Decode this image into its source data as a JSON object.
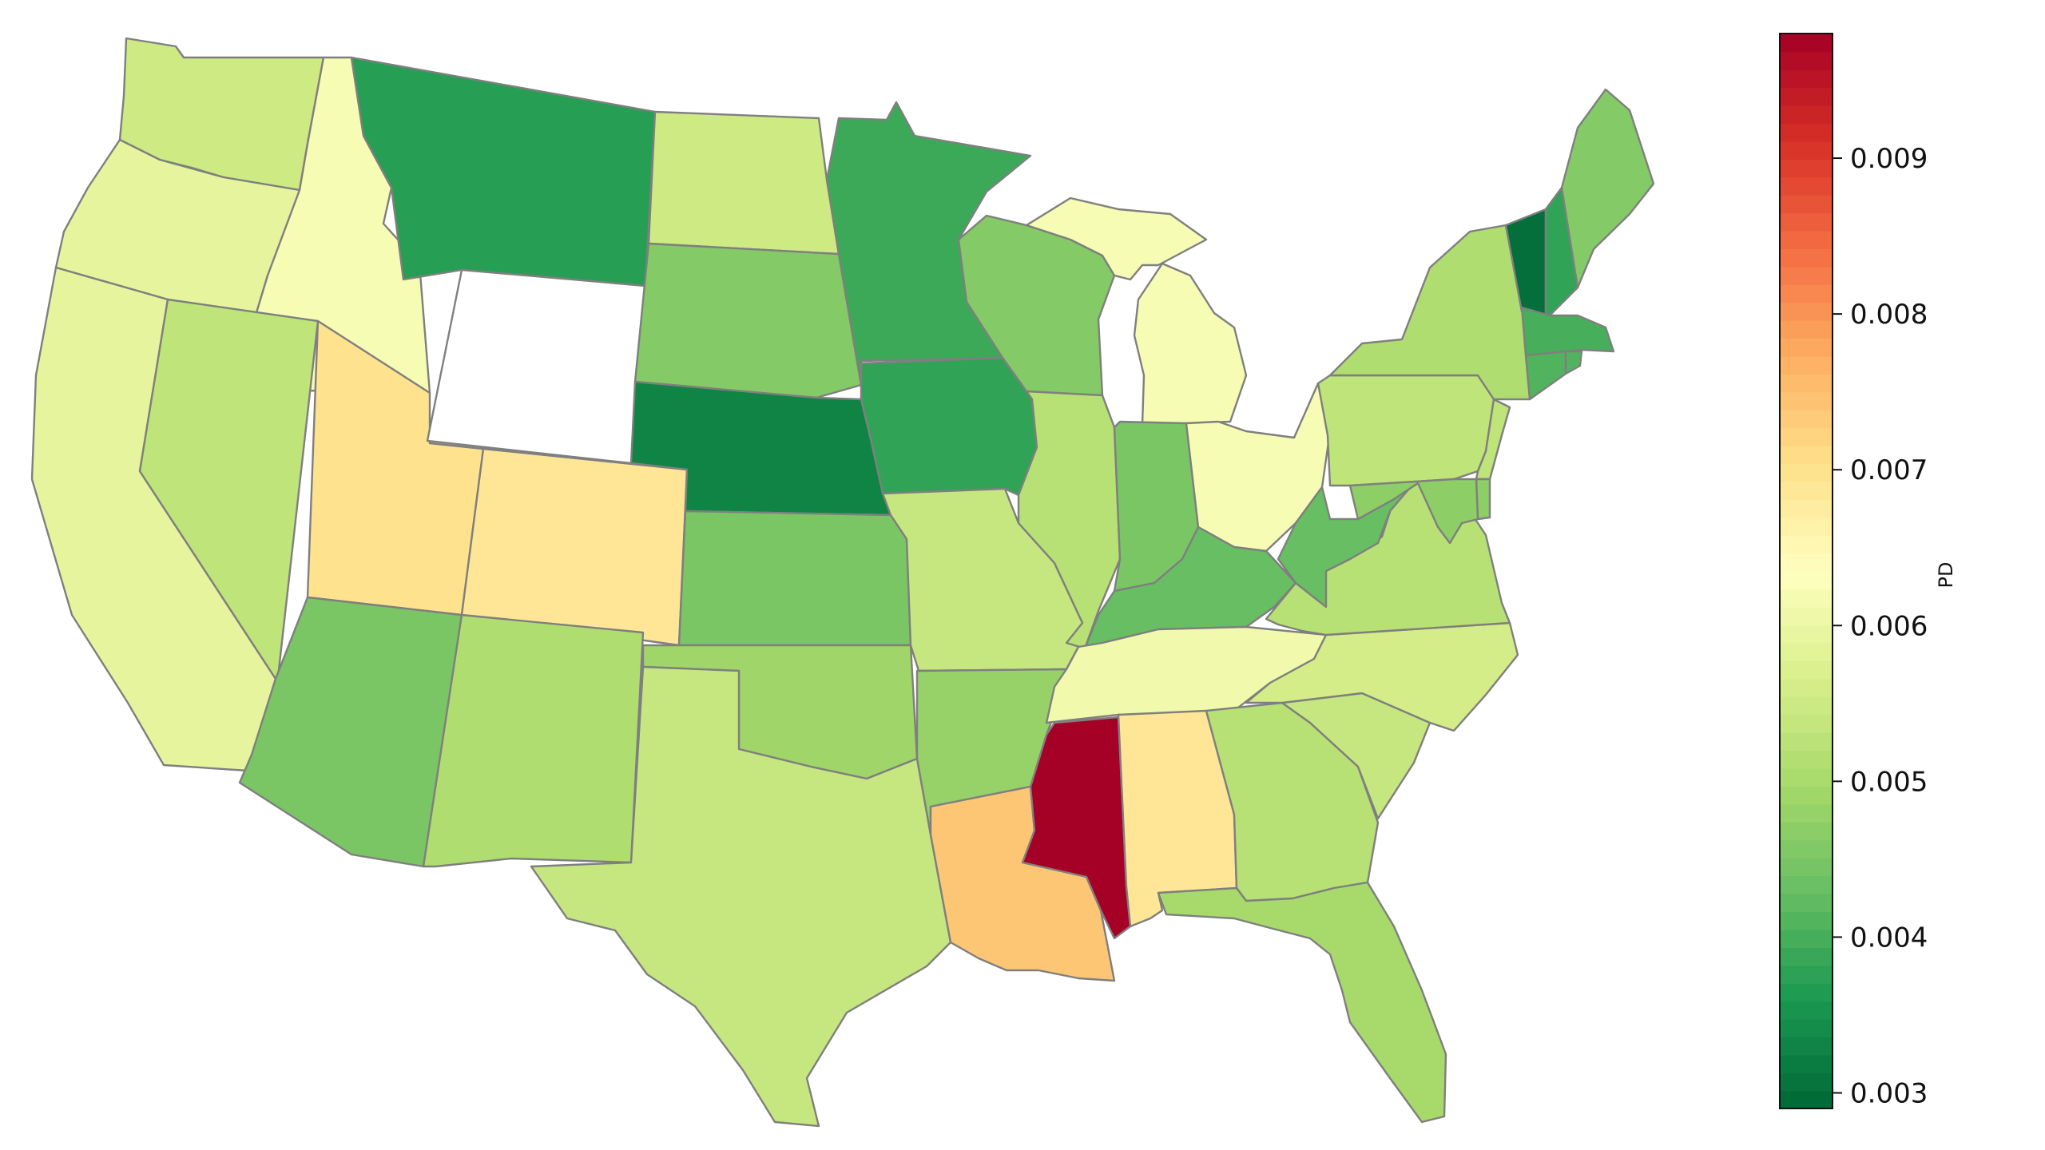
{
  "chart_data": {
    "type": "choropleth",
    "region": "contiguous United States",
    "colormap": "RdYlGn_r",
    "colorbar": {
      "label": "PD",
      "range": [
        0.0029,
        0.0098
      ],
      "ticks": [
        "0.003",
        "0.004",
        "0.005",
        "0.006",
        "0.007",
        "0.008",
        "0.009"
      ]
    },
    "missing_color": "#ffffff",
    "states": [
      {
        "id": "WA",
        "value": 0.0055
      },
      {
        "id": "OR",
        "value": 0.0059
      },
      {
        "id": "CA",
        "value": 0.0059
      },
      {
        "id": "ID",
        "value": 0.0062
      },
      {
        "id": "NV",
        "value": 0.0053
      },
      {
        "id": "UT",
        "value": 0.007
      },
      {
        "id": "AZ",
        "value": 0.0045
      },
      {
        "id": "MT",
        "value": 0.0037
      },
      {
        "id": "WY",
        "value": null
      },
      {
        "id": "CO",
        "value": 0.0069
      },
      {
        "id": "NM",
        "value": 0.0051
      },
      {
        "id": "ND",
        "value": 0.0055
      },
      {
        "id": "SD",
        "value": 0.0046
      },
      {
        "id": "NE",
        "value": 0.0033
      },
      {
        "id": "KS",
        "value": 0.0045
      },
      {
        "id": "OK",
        "value": 0.0049
      },
      {
        "id": "TX",
        "value": 0.0054
      },
      {
        "id": "MN",
        "value": 0.0039
      },
      {
        "id": "IA",
        "value": 0.0038
      },
      {
        "id": "MO",
        "value": 0.0054
      },
      {
        "id": "AR",
        "value": 0.0048
      },
      {
        "id": "LA",
        "value": 0.0074
      },
      {
        "id": "WI",
        "value": 0.0046
      },
      {
        "id": "IL",
        "value": 0.0052
      },
      {
        "id": "MI",
        "value": 0.0062
      },
      {
        "id": "IN",
        "value": 0.0045
      },
      {
        "id": "OH",
        "value": 0.0062
      },
      {
        "id": "KY",
        "value": 0.0043
      },
      {
        "id": "TN",
        "value": 0.0061
      },
      {
        "id": "MS",
        "value": 0.0098
      },
      {
        "id": "AL",
        "value": 0.0069
      },
      {
        "id": "GA",
        "value": 0.0052
      },
      {
        "id": "FL",
        "value": 0.005
      },
      {
        "id": "SC",
        "value": 0.0054
      },
      {
        "id": "NC",
        "value": 0.0056
      },
      {
        "id": "VA",
        "value": 0.0052
      },
      {
        "id": "WV",
        "value": 0.0043
      },
      {
        "id": "PA",
        "value": 0.0053
      },
      {
        "id": "NY",
        "value": 0.0051
      },
      {
        "id": "VT",
        "value": 0.003
      },
      {
        "id": "NH",
        "value": 0.0038
      },
      {
        "id": "ME",
        "value": 0.0046
      },
      {
        "id": "MA",
        "value": 0.004
      },
      {
        "id": "CT",
        "value": 0.0041
      },
      {
        "id": "RI",
        "value": 0.0041
      },
      {
        "id": "NJ",
        "value": 0.0053
      },
      {
        "id": "DE",
        "value": 0.0047
      },
      {
        "id": "MD",
        "value": 0.0047
      }
    ]
  }
}
